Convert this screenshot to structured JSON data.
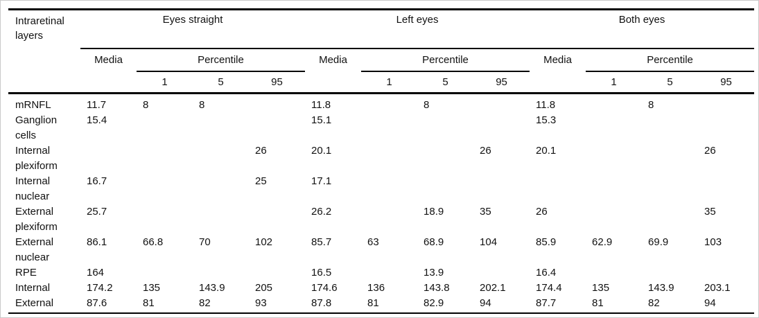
{
  "table": {
    "corner_header": "Intraretinal layers",
    "groups": [
      {
        "label": "Eyes straight"
      },
      {
        "label": "Left eyes"
      },
      {
        "label": "Both eyes"
      }
    ],
    "subheaders": {
      "media": "Media",
      "percentile": "Percentile",
      "percentile_levels": [
        "1",
        "5",
        "95"
      ]
    },
    "rows": [
      {
        "layer": "mRNFL",
        "values": [
          "11.7",
          "8",
          "8",
          "",
          "11.8",
          "",
          "8",
          "",
          "11.8",
          "",
          "8",
          ""
        ]
      },
      {
        "layer": "Ganglion cells",
        "values": [
          "15.4",
          "",
          "",
          "",
          "15.1",
          "",
          "",
          "",
          "15.3",
          "",
          "",
          ""
        ]
      },
      {
        "layer": "Internal plexiform",
        "values": [
          "",
          "",
          "",
          "26",
          "20.1",
          "",
          "",
          "26",
          "20.1",
          "",
          "",
          "26"
        ]
      },
      {
        "layer": "Internal nuclear",
        "values": [
          "16.7",
          "",
          "",
          "25",
          "17.1",
          "",
          "",
          "",
          "",
          "",
          "",
          ""
        ]
      },
      {
        "layer": "External plexiform",
        "values": [
          "25.7",
          "",
          "",
          "",
          "26.2",
          "",
          "18.9",
          "35",
          "26",
          "",
          "",
          "35"
        ]
      },
      {
        "layer": "External nuclear",
        "values": [
          "86.1",
          "66.8",
          "70",
          "102",
          "85.7",
          "63",
          "68.9",
          "104",
          "85.9",
          "62.9",
          "69.9",
          "103"
        ]
      },
      {
        "layer": "RPE",
        "values": [
          "164",
          "",
          "",
          "",
          "16.5",
          "",
          "13.9",
          "",
          "16.4",
          "",
          "",
          ""
        ]
      },
      {
        "layer": "Internal",
        "values": [
          "174.2",
          "135",
          "143.9",
          "205",
          "174.6",
          "136",
          "143.8",
          "202.1",
          "174.4",
          "135",
          "143.9",
          "203.1"
        ]
      },
      {
        "layer": "External",
        "values": [
          "87.6",
          "81",
          "82",
          "93",
          "87.8",
          "81",
          "82.9",
          "94",
          "87.7",
          "81",
          "82",
          "94"
        ]
      }
    ],
    "colors": {
      "rule": "#000000",
      "text": "#111111",
      "page_border": "#c9c9c9",
      "background": "#ffffff"
    }
  }
}
